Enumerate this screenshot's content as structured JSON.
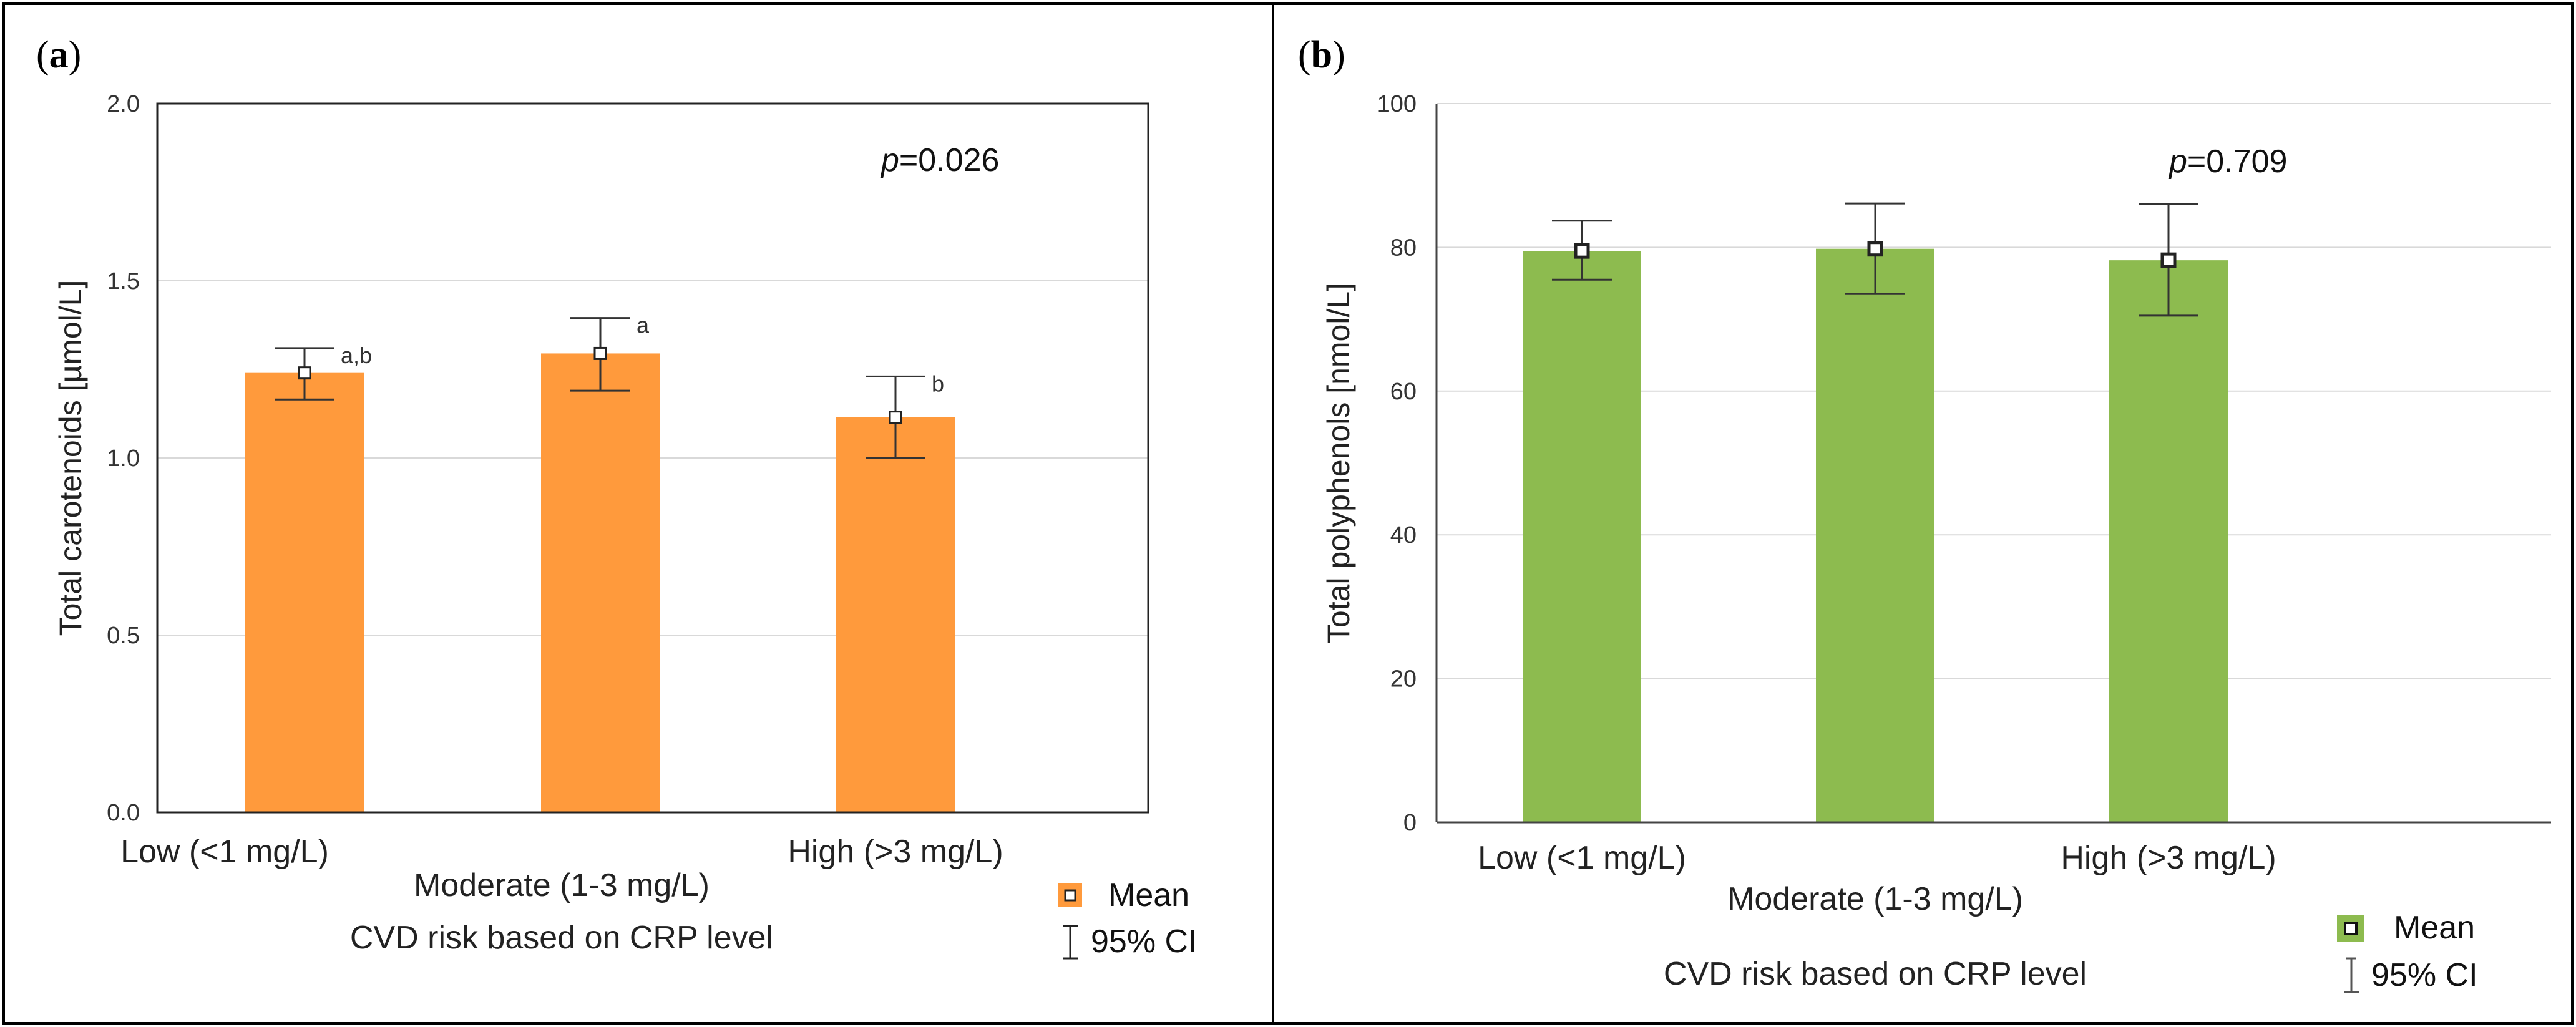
{
  "chart_data": [
    {
      "type": "bar",
      "panel_label": {
        "open": "(",
        "letter": "a",
        "close": ")"
      },
      "categories": [
        "Low (<1 mg/L)",
        "Moderate (1-3 mg/L)",
        "High (>3 mg/L)"
      ],
      "values": [
        1.24,
        1.295,
        1.115
      ],
      "ci_low": [
        1.165,
        1.19,
        1.0
      ],
      "ci_high": [
        1.31,
        1.395,
        1.23
      ],
      "significance": [
        "a,b",
        "a",
        "b"
      ],
      "ylabel": "Total carotenoids [µmol/L]",
      "xlabel": "CVD risk based on CRP level",
      "ylim": [
        0,
        2
      ],
      "yticks": [
        "0.0",
        "0.5",
        "1.0",
        "1.5",
        "2.0"
      ],
      "annotation": {
        "italic": "p",
        "rest": "=0.026"
      },
      "legend": {
        "mean": "Mean",
        "ci": "95% CI"
      },
      "bar_color": "#FF9A3C",
      "grid": true
    },
    {
      "type": "bar",
      "panel_label": {
        "open": "(",
        "letter": "b",
        "close": ")"
      },
      "categories": [
        "Low (<1 mg/L)",
        "Moderate (1-3 mg/L)",
        "High (>3 mg/L)"
      ],
      "values": [
        79.5,
        79.8,
        78.2
      ],
      "ci_low": [
        75.5,
        73.5,
        70.5
      ],
      "ci_high": [
        83.7,
        86.1,
        86.0
      ],
      "ylabel": "Total polyphenols [nmol/L]",
      "xlabel": "CVD risk based on CRP level",
      "ylim": [
        0,
        100
      ],
      "yticks": [
        "0",
        "20",
        "40",
        "60",
        "80",
        "100"
      ],
      "annotation": {
        "italic": "p",
        "rest": "=0.709"
      },
      "legend": {
        "mean": "Mean",
        "ci": "95% CI"
      },
      "bar_color": "#8DBB4F",
      "grid": true
    }
  ]
}
